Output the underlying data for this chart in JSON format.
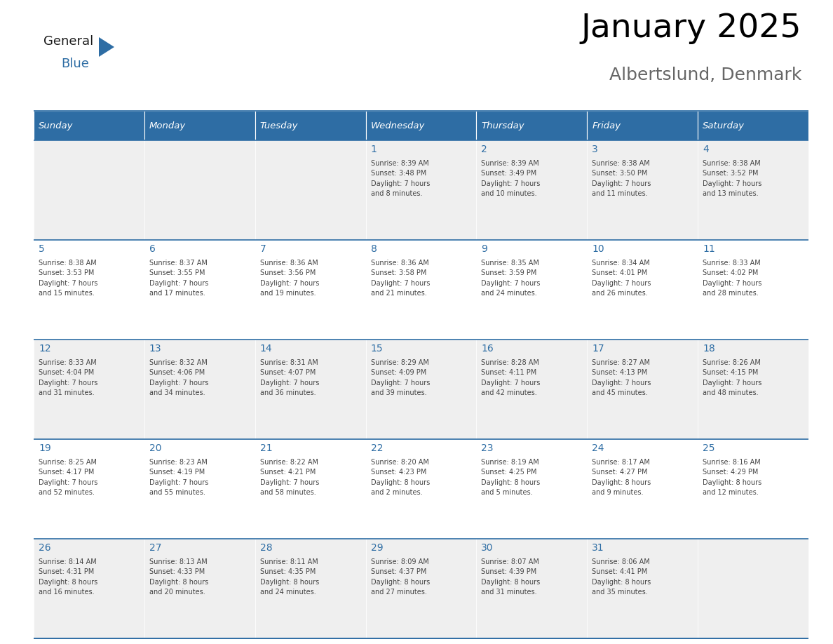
{
  "title": "January 2025",
  "subtitle": "Albertslund, Denmark",
  "header_bg": "#2E6DA4",
  "header_text_color": "#FFFFFF",
  "cell_bg_odd": "#EFEFEF",
  "cell_bg_even": "#FFFFFF",
  "day_number_color": "#2E6DA4",
  "text_color": "#444444",
  "line_color": "#2E6DA4",
  "days_of_week": [
    "Sunday",
    "Monday",
    "Tuesday",
    "Wednesday",
    "Thursday",
    "Friday",
    "Saturday"
  ],
  "weeks": [
    [
      {
        "day": "",
        "info": ""
      },
      {
        "day": "",
        "info": ""
      },
      {
        "day": "",
        "info": ""
      },
      {
        "day": "1",
        "info": "Sunrise: 8:39 AM\nSunset: 3:48 PM\nDaylight: 7 hours\nand 8 minutes."
      },
      {
        "day": "2",
        "info": "Sunrise: 8:39 AM\nSunset: 3:49 PM\nDaylight: 7 hours\nand 10 minutes."
      },
      {
        "day": "3",
        "info": "Sunrise: 8:38 AM\nSunset: 3:50 PM\nDaylight: 7 hours\nand 11 minutes."
      },
      {
        "day": "4",
        "info": "Sunrise: 8:38 AM\nSunset: 3:52 PM\nDaylight: 7 hours\nand 13 minutes."
      }
    ],
    [
      {
        "day": "5",
        "info": "Sunrise: 8:38 AM\nSunset: 3:53 PM\nDaylight: 7 hours\nand 15 minutes."
      },
      {
        "day": "6",
        "info": "Sunrise: 8:37 AM\nSunset: 3:55 PM\nDaylight: 7 hours\nand 17 minutes."
      },
      {
        "day": "7",
        "info": "Sunrise: 8:36 AM\nSunset: 3:56 PM\nDaylight: 7 hours\nand 19 minutes."
      },
      {
        "day": "8",
        "info": "Sunrise: 8:36 AM\nSunset: 3:58 PM\nDaylight: 7 hours\nand 21 minutes."
      },
      {
        "day": "9",
        "info": "Sunrise: 8:35 AM\nSunset: 3:59 PM\nDaylight: 7 hours\nand 24 minutes."
      },
      {
        "day": "10",
        "info": "Sunrise: 8:34 AM\nSunset: 4:01 PM\nDaylight: 7 hours\nand 26 minutes."
      },
      {
        "day": "11",
        "info": "Sunrise: 8:33 AM\nSunset: 4:02 PM\nDaylight: 7 hours\nand 28 minutes."
      }
    ],
    [
      {
        "day": "12",
        "info": "Sunrise: 8:33 AM\nSunset: 4:04 PM\nDaylight: 7 hours\nand 31 minutes."
      },
      {
        "day": "13",
        "info": "Sunrise: 8:32 AM\nSunset: 4:06 PM\nDaylight: 7 hours\nand 34 minutes."
      },
      {
        "day": "14",
        "info": "Sunrise: 8:31 AM\nSunset: 4:07 PM\nDaylight: 7 hours\nand 36 minutes."
      },
      {
        "day": "15",
        "info": "Sunrise: 8:29 AM\nSunset: 4:09 PM\nDaylight: 7 hours\nand 39 minutes."
      },
      {
        "day": "16",
        "info": "Sunrise: 8:28 AM\nSunset: 4:11 PM\nDaylight: 7 hours\nand 42 minutes."
      },
      {
        "day": "17",
        "info": "Sunrise: 8:27 AM\nSunset: 4:13 PM\nDaylight: 7 hours\nand 45 minutes."
      },
      {
        "day": "18",
        "info": "Sunrise: 8:26 AM\nSunset: 4:15 PM\nDaylight: 7 hours\nand 48 minutes."
      }
    ],
    [
      {
        "day": "19",
        "info": "Sunrise: 8:25 AM\nSunset: 4:17 PM\nDaylight: 7 hours\nand 52 minutes."
      },
      {
        "day": "20",
        "info": "Sunrise: 8:23 AM\nSunset: 4:19 PM\nDaylight: 7 hours\nand 55 minutes."
      },
      {
        "day": "21",
        "info": "Sunrise: 8:22 AM\nSunset: 4:21 PM\nDaylight: 7 hours\nand 58 minutes."
      },
      {
        "day": "22",
        "info": "Sunrise: 8:20 AM\nSunset: 4:23 PM\nDaylight: 8 hours\nand 2 minutes."
      },
      {
        "day": "23",
        "info": "Sunrise: 8:19 AM\nSunset: 4:25 PM\nDaylight: 8 hours\nand 5 minutes."
      },
      {
        "day": "24",
        "info": "Sunrise: 8:17 AM\nSunset: 4:27 PM\nDaylight: 8 hours\nand 9 minutes."
      },
      {
        "day": "25",
        "info": "Sunrise: 8:16 AM\nSunset: 4:29 PM\nDaylight: 8 hours\nand 12 minutes."
      }
    ],
    [
      {
        "day": "26",
        "info": "Sunrise: 8:14 AM\nSunset: 4:31 PM\nDaylight: 8 hours\nand 16 minutes."
      },
      {
        "day": "27",
        "info": "Sunrise: 8:13 AM\nSunset: 4:33 PM\nDaylight: 8 hours\nand 20 minutes."
      },
      {
        "day": "28",
        "info": "Sunrise: 8:11 AM\nSunset: 4:35 PM\nDaylight: 8 hours\nand 24 minutes."
      },
      {
        "day": "29",
        "info": "Sunrise: 8:09 AM\nSunset: 4:37 PM\nDaylight: 8 hours\nand 27 minutes."
      },
      {
        "day": "30",
        "info": "Sunrise: 8:07 AM\nSunset: 4:39 PM\nDaylight: 8 hours\nand 31 minutes."
      },
      {
        "day": "31",
        "info": "Sunrise: 8:06 AM\nSunset: 4:41 PM\nDaylight: 8 hours\nand 35 minutes."
      },
      {
        "day": "",
        "info": ""
      }
    ]
  ],
  "logo_general_color": "#1a1a1a",
  "logo_blue_color": "#2E6DA4",
  "logo_triangle_color": "#2E6DA4",
  "fig_width": 11.88,
  "fig_height": 9.18,
  "dpi": 100
}
